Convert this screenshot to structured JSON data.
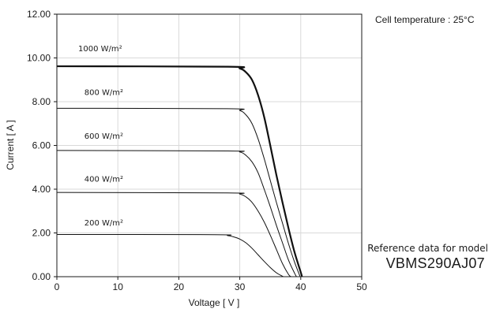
{
  "annotations": {
    "cell_temperature": "Cell temperature : 25°C",
    "reference_label": "Reference data for model",
    "model": "VBMS290AJ07"
  },
  "chart_data": {
    "type": "line",
    "title": "",
    "xlabel": "Voltage [ V ]",
    "ylabel": "Current [ A ]",
    "xlim": [
      0,
      50
    ],
    "ylim": [
      0,
      12
    ],
    "xticks": [
      0,
      10,
      20,
      30,
      40,
      50
    ],
    "xtick_labels": [
      "0",
      "10",
      "20",
      "30",
      "40",
      "50"
    ],
    "yticks": [
      0,
      2,
      4,
      6,
      8,
      10,
      12
    ],
    "ytick_labels": [
      "0.00",
      "2.00",
      "4.00",
      "6.00",
      "8.00",
      "10.00",
      "12.00"
    ],
    "grid": true,
    "legend": "none",
    "series": [
      {
        "name": "1000 W/m²",
        "label_at": [
          3.5,
          10.3
        ],
        "emphasis": true,
        "points": [
          [
            0,
            9.62
          ],
          [
            28,
            9.6
          ],
          [
            30,
            9.52
          ],
          [
            31,
            9.35
          ],
          [
            32,
            9.0
          ],
          [
            33,
            8.3
          ],
          [
            34,
            7.3
          ],
          [
            35,
            6.0
          ],
          [
            36,
            4.65
          ],
          [
            37,
            3.4
          ],
          [
            38,
            2.2
          ],
          [
            39,
            1.1
          ],
          [
            40,
            0.2
          ],
          [
            40.2,
            0
          ]
        ]
      },
      {
        "name": "800 W/m²",
        "label_at": [
          4.5,
          8.3
        ],
        "emphasis": false,
        "points": [
          [
            0,
            7.7
          ],
          [
            28,
            7.68
          ],
          [
            30,
            7.6
          ],
          [
            31,
            7.4
          ],
          [
            32,
            7.0
          ],
          [
            33,
            6.3
          ],
          [
            34,
            5.4
          ],
          [
            35,
            4.4
          ],
          [
            36,
            3.4
          ],
          [
            37,
            2.45
          ],
          [
            38,
            1.5
          ],
          [
            39,
            0.65
          ],
          [
            39.9,
            0
          ]
        ]
      },
      {
        "name": "600 W/m²",
        "label_at": [
          4.5,
          6.3
        ],
        "emphasis": false,
        "points": [
          [
            0,
            5.77
          ],
          [
            28,
            5.75
          ],
          [
            30,
            5.7
          ],
          [
            31,
            5.55
          ],
          [
            32,
            5.25
          ],
          [
            33,
            4.75
          ],
          [
            34,
            4.0
          ],
          [
            35,
            3.2
          ],
          [
            36,
            2.35
          ],
          [
            37,
            1.55
          ],
          [
            38,
            0.75
          ],
          [
            39,
            0.15
          ],
          [
            39.3,
            0
          ]
        ]
      },
      {
        "name": "400 W/m²",
        "label_at": [
          4.5,
          4.35
        ],
        "emphasis": false,
        "points": [
          [
            0,
            3.85
          ],
          [
            28,
            3.83
          ],
          [
            30,
            3.78
          ],
          [
            31,
            3.65
          ],
          [
            32,
            3.4
          ],
          [
            33,
            3.0
          ],
          [
            34,
            2.5
          ],
          [
            35,
            1.9
          ],
          [
            36,
            1.25
          ],
          [
            37,
            0.6
          ],
          [
            38,
            0.1
          ],
          [
            38.4,
            0
          ]
        ]
      },
      {
        "name": "200 W/m²",
        "label_at": [
          4.5,
          2.35
        ],
        "emphasis": false,
        "points": [
          [
            0,
            1.93
          ],
          [
            26,
            1.92
          ],
          [
            28,
            1.88
          ],
          [
            29,
            1.82
          ],
          [
            30,
            1.72
          ],
          [
            31,
            1.55
          ],
          [
            32,
            1.3
          ],
          [
            33,
            1.0
          ],
          [
            34,
            0.7
          ],
          [
            35,
            0.42
          ],
          [
            36,
            0.18
          ],
          [
            37,
            0.02
          ],
          [
            37.2,
            0
          ]
        ]
      }
    ]
  }
}
